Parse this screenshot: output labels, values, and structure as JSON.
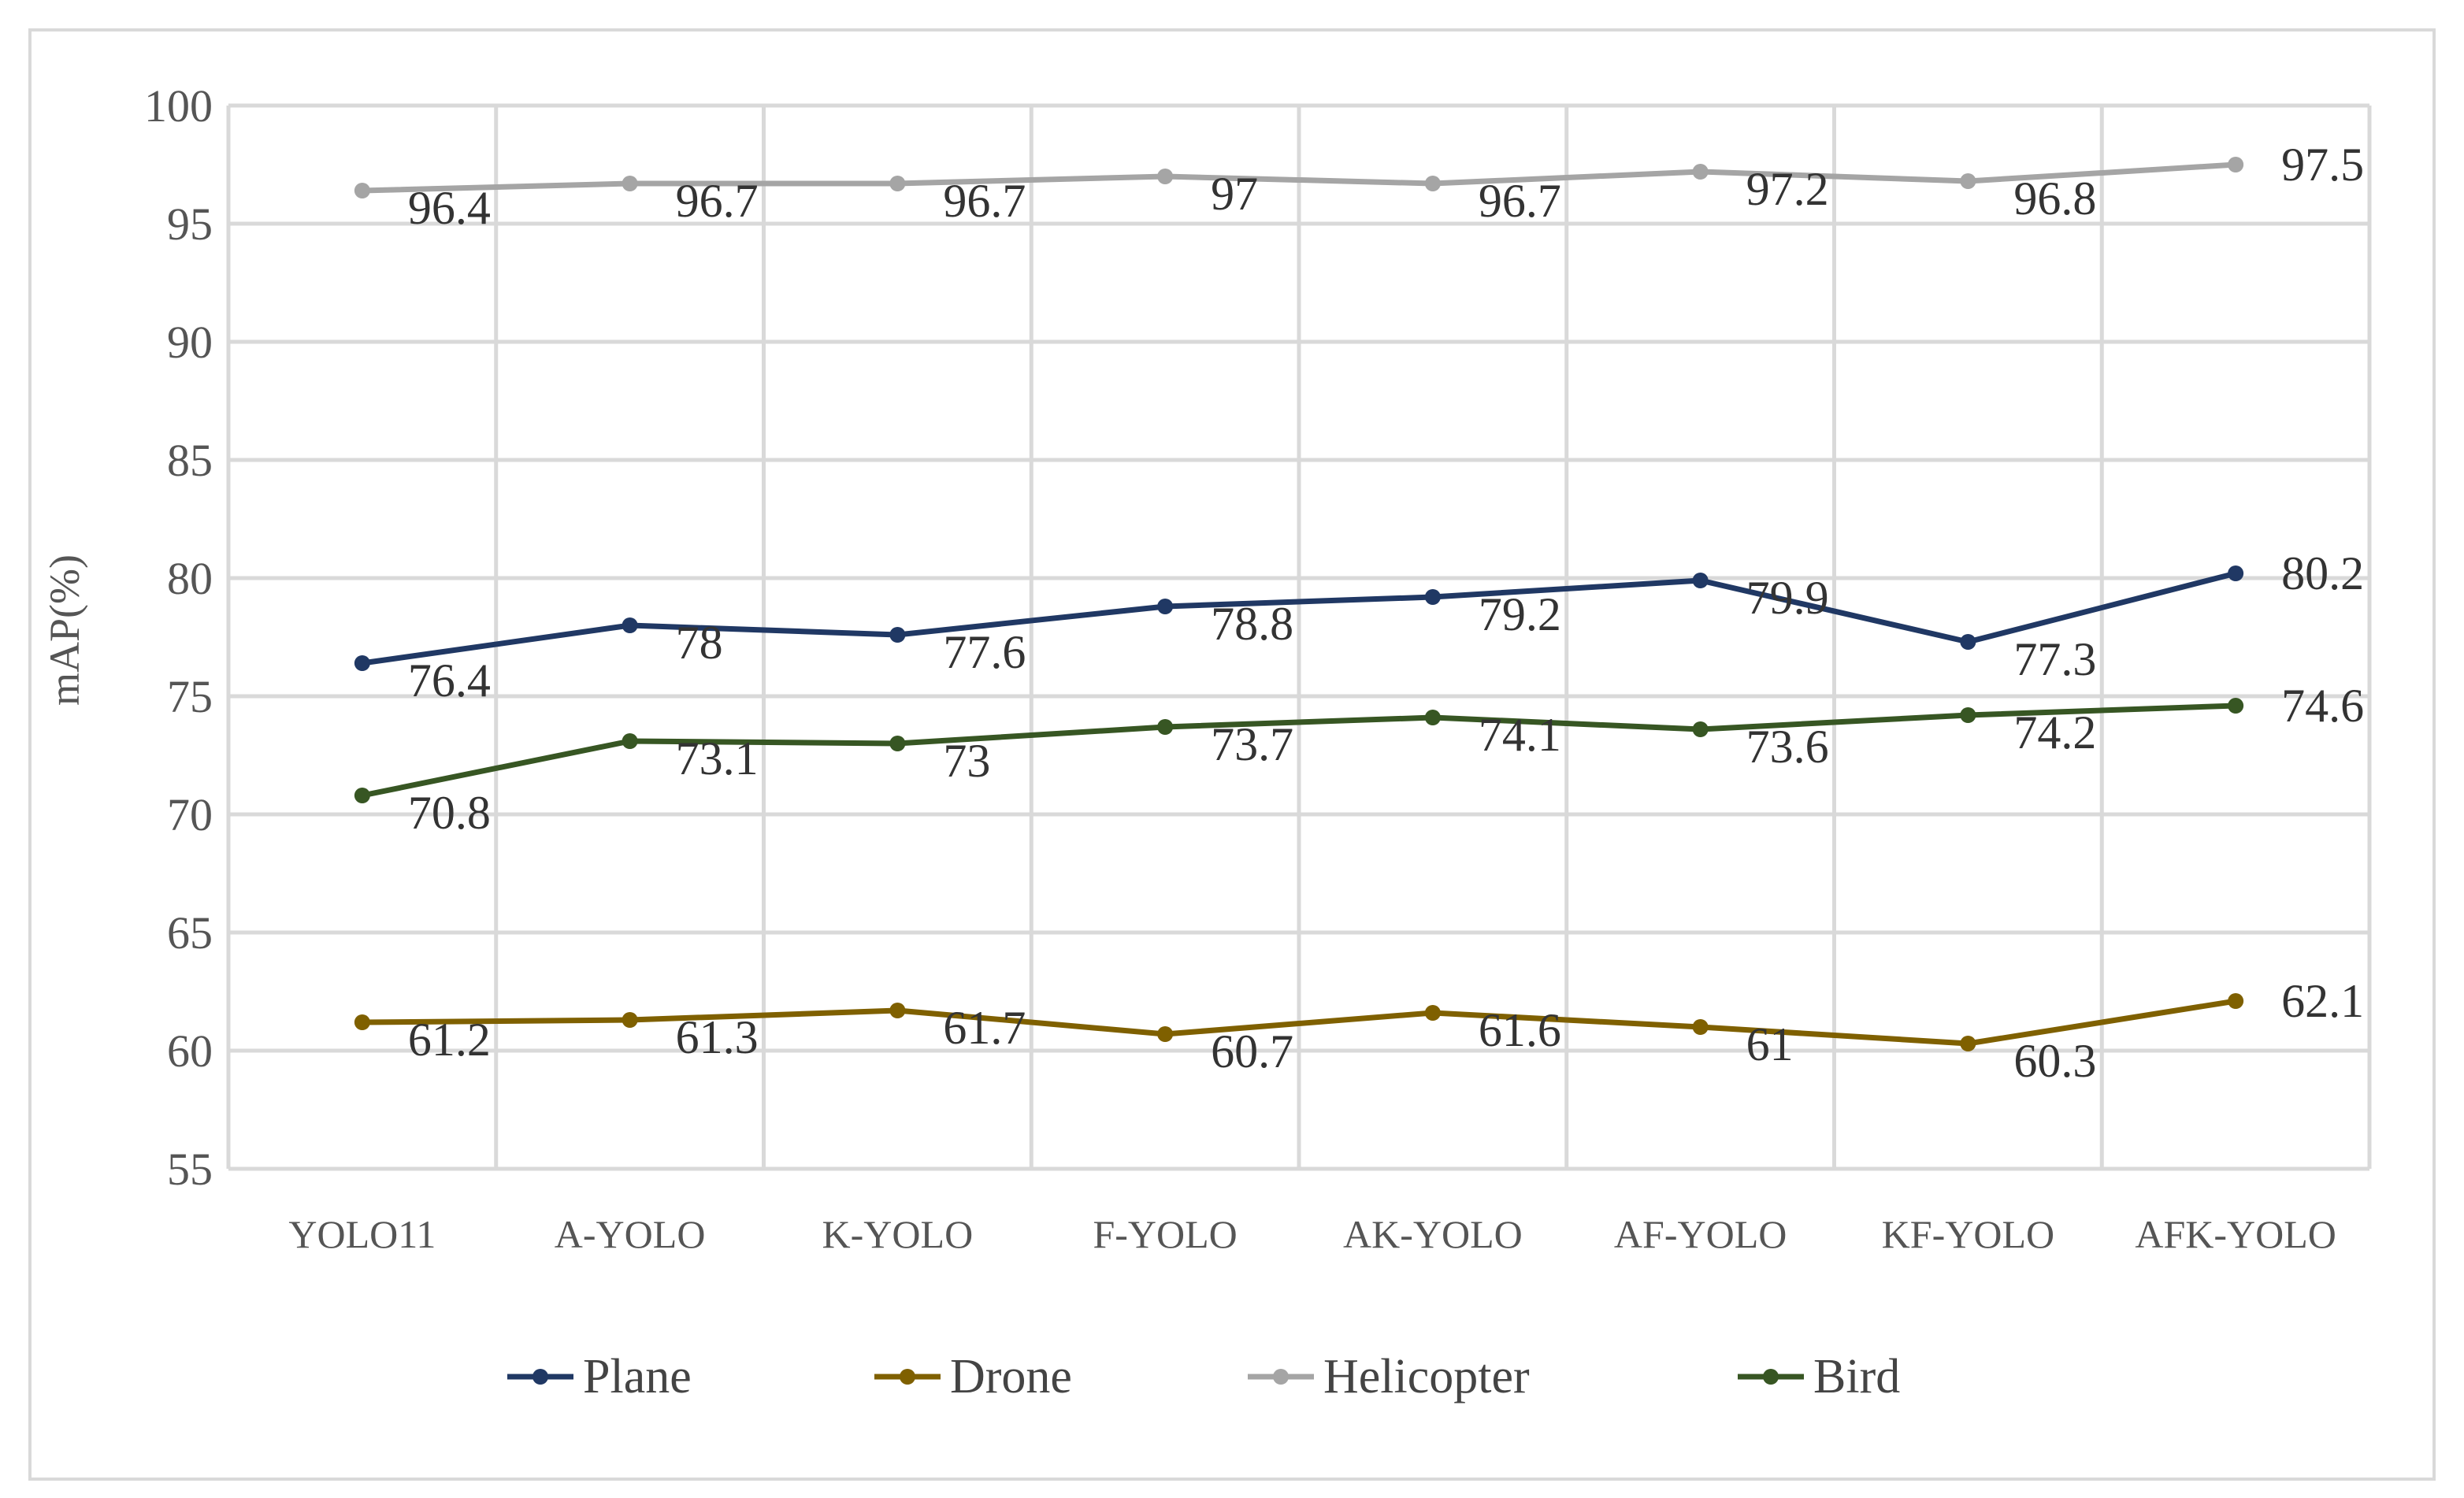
{
  "chart_data": {
    "type": "line",
    "title": "",
    "xlabel": "",
    "ylabel": "mAP(%)",
    "ylim": [
      55,
      100
    ],
    "yticks": [
      55,
      60,
      65,
      70,
      75,
      80,
      85,
      90,
      95,
      100
    ],
    "grid": true,
    "legend_position": "bottom",
    "categories": [
      "YOLO11",
      "A-YOLO",
      "K-YOLO",
      "F-YOLO",
      "AK-YOLO",
      "AF-YOLO",
      "KF-YOLO",
      "AFK-YOLO"
    ],
    "series": [
      {
        "name": "Plane",
        "color": "#203864",
        "values": [
          76.4,
          78,
          77.6,
          78.8,
          79.2,
          79.9,
          77.3,
          80.2
        ],
        "labels": [
          "76.4",
          "78",
          "77.6",
          "78.8",
          "79.2",
          "79.9",
          "77.3",
          "80.2"
        ]
      },
      {
        "name": "Drone",
        "color": "#7f6000",
        "values": [
          61.2,
          61.3,
          61.7,
          60.7,
          61.6,
          61,
          60.3,
          62.1
        ],
        "labels": [
          "61.2",
          "61.3",
          "61.7",
          "60.7",
          "61.6",
          "61",
          "60.3",
          "62.1"
        ]
      },
      {
        "name": "Helicopter",
        "color": "#a5a5a5",
        "values": [
          96.4,
          96.7,
          96.7,
          97,
          96.7,
          97.2,
          96.8,
          97.5
        ],
        "labels": [
          "96.4",
          "96.7",
          "96.7",
          "97",
          "96.7",
          "97.2",
          "96.8",
          "97.5"
        ]
      },
      {
        "name": "Bird",
        "color": "#375623",
        "values": [
          70.8,
          73.1,
          73,
          73.7,
          74.1,
          73.6,
          74.2,
          74.6
        ],
        "labels": [
          "70.8",
          "73.1",
          "73",
          "73.7",
          "74.1",
          "73.6",
          "74.2",
          "74.6"
        ]
      }
    ]
  }
}
